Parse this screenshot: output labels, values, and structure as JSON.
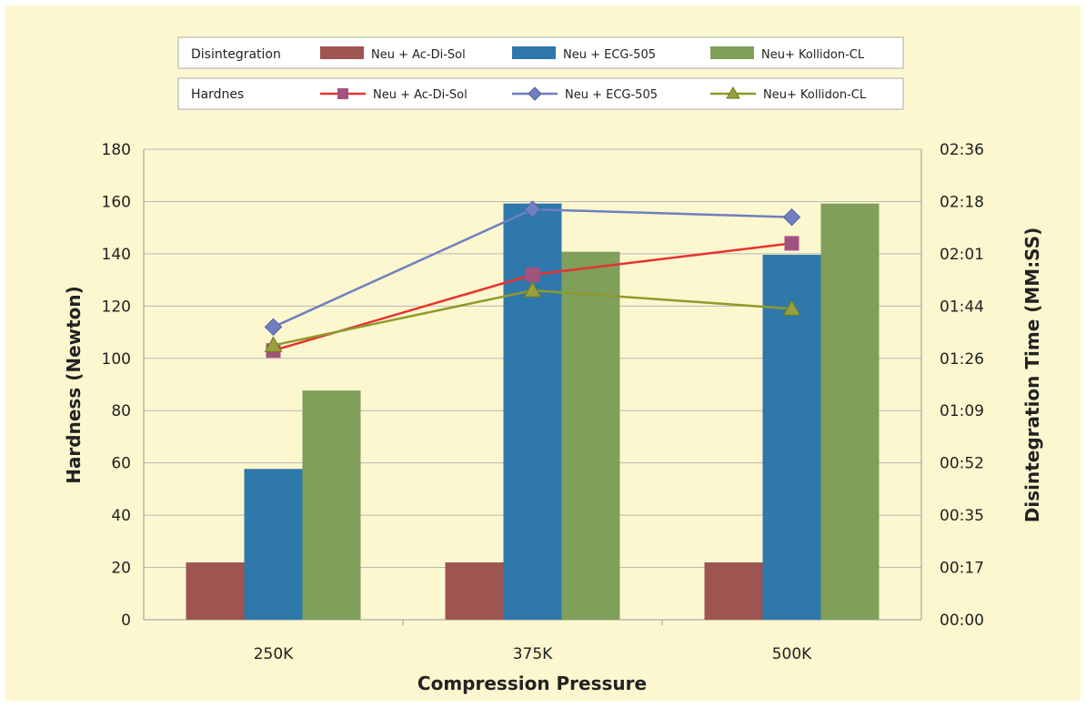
{
  "chart_data": {
    "type": "bar",
    "categories": [
      "250K",
      "375K",
      "500K"
    ],
    "xlabel": "Compression Pressure",
    "ylabel": "Hardness (Newton)",
    "y2label": "Disintegration Time (MM:SS)",
    "ylim": [
      0,
      180
    ],
    "yticks": [
      0,
      20,
      40,
      60,
      80,
      100,
      120,
      140,
      160,
      180
    ],
    "y2lim_seconds": [
      0,
      156
    ],
    "y2ticks": [
      "00:00",
      "00:17",
      "00:35",
      "00:52",
      "01:09",
      "01:26",
      "01:44",
      "02:01",
      "02:18",
      "02:36"
    ],
    "bar_series": [
      {
        "name": "Neu + Ac-Di-Sol",
        "color": "#9e5451",
        "values_seconds": [
          19,
          19,
          19
        ]
      },
      {
        "name": "Neu + ECG-505",
        "color": "#2f78ab",
        "values_seconds": [
          50,
          138,
          121
        ]
      },
      {
        "name": "Neu+ Kollidon-CL",
        "color": "#7f9f5b",
        "values_seconds": [
          76,
          122,
          138
        ]
      }
    ],
    "line_series": [
      {
        "name": "Neu + Ac-Di-Sol",
        "color": "#e8322f",
        "marker": "square",
        "marker_color": "#a2527f",
        "values": [
          103,
          132,
          144
        ]
      },
      {
        "name": "Neu + ECG-505",
        "color": "#6f7fbf",
        "marker": "diamond",
        "marker_color": "#6f7fbf",
        "values": [
          112,
          157,
          154
        ]
      },
      {
        "name": "Neu+ Kollidon-CL",
        "color": "#8f9a2a",
        "marker": "triangle",
        "marker_color": "#9aa03f",
        "values": [
          105,
          126,
          119
        ]
      }
    ],
    "legend": {
      "placement": "top",
      "rows": [
        {
          "label": "Disintegration",
          "kind": "bar"
        },
        {
          "label": "Hardnes",
          "kind": "line"
        }
      ]
    },
    "grid": {
      "y": true,
      "x": false
    },
    "background": "#fcf7cf"
  }
}
